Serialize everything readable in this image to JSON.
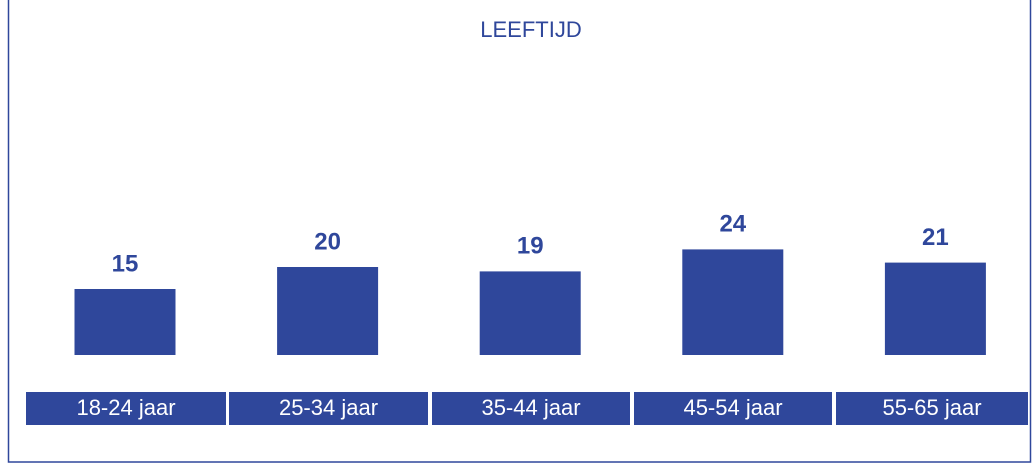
{
  "chart_data": {
    "type": "bar",
    "title": "LEEFTIJD",
    "categories": [
      "18-24 jaar",
      "25-34 jaar",
      "35-44 jaar",
      "45-54 jaar",
      "55-65 jaar"
    ],
    "values": [
      15,
      20,
      19,
      24,
      21
    ],
    "color": "#2f479b"
  }
}
